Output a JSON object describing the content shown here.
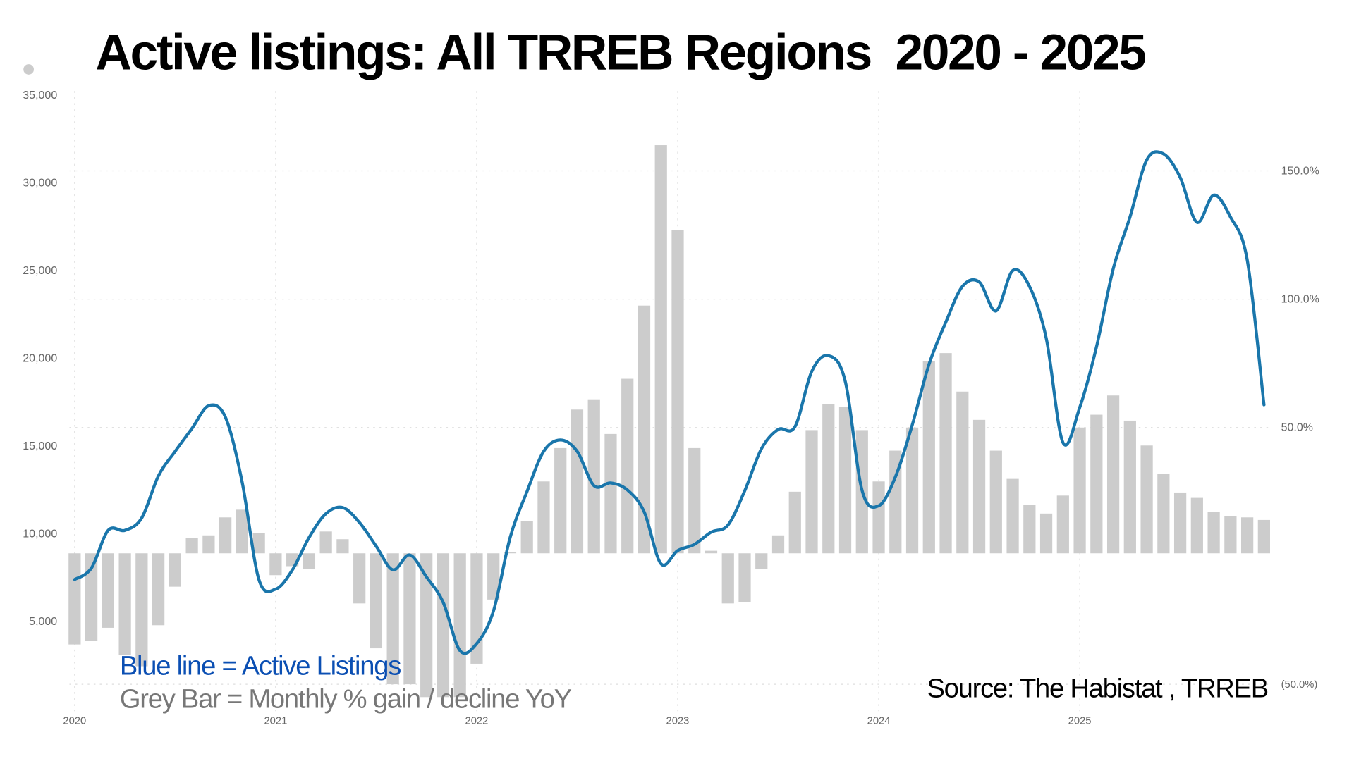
{
  "chart_data": {
    "type": "bar+line",
    "title": "Active listings: All TRREB Regions  2020 - 2025",
    "x_start": "2020-01",
    "x_tick_labels": [
      "2020",
      "2021",
      "2022",
      "2023",
      "2024",
      "2025"
    ],
    "left_axis": {
      "label": "Active Listings",
      "ticks": [
        "5,000",
        "10,000",
        "15,000",
        "20,000",
        "25,000",
        "30,000",
        "35,000"
      ],
      "tick_values": [
        5000,
        10000,
        15000,
        20000,
        25000,
        30000,
        35000
      ],
      "range": [
        0,
        35000
      ]
    },
    "right_axis": {
      "label": "Monthly % gain / decline YoY",
      "ticks": [
        "150.0%",
        "100.0%",
        "50.0%",
        "(50.0%)"
      ],
      "tick_values": [
        150,
        100,
        50,
        -50
      ],
      "range": [
        -60,
        178
      ]
    },
    "grid": true,
    "series": [
      {
        "name": "Active Listings",
        "type": "line",
        "axis": "left",
        "color": "#1a76ab",
        "values": [
          7400,
          8050,
          10200,
          10200,
          10900,
          13300,
          14700,
          16000,
          17300,
          16650,
          12950,
          7400,
          6850,
          7950,
          9800,
          11150,
          11500,
          10650,
          9300,
          7950,
          8800,
          7550,
          6100,
          3350,
          3750,
          5600,
          9800,
          12400,
          14700,
          15350,
          14700,
          12750,
          12900,
          12500,
          11250,
          8300,
          9050,
          9400,
          10100,
          10500,
          12450,
          14850,
          15950,
          16100,
          19250,
          20150,
          18700,
          12500,
          11600,
          13250,
          16200,
          19650,
          22050,
          24100,
          24350,
          22700,
          25000,
          24100,
          21150,
          15200,
          17200,
          20650,
          25100,
          28050,
          31300,
          31650,
          30300,
          27750,
          29300,
          28050,
          25600,
          17350
        ]
      },
      {
        "name": "Monthly % gain / decline YoY",
        "type": "bar",
        "axis": "right",
        "color": "#cccccc",
        "values": [
          -34.5,
          -33,
          -28,
          -38.5,
          -43,
          -27,
          -12,
          7,
          8,
          15,
          18,
          9,
          -7.5,
          -4,
          -5,
          9.5,
          6.5,
          -18.5,
          -36,
          -50,
          -50,
          -55,
          -55,
          -55,
          -42,
          -17,
          1.5,
          13.5,
          29,
          42,
          57,
          61,
          47.5,
          69,
          97.5,
          160,
          127,
          42,
          2,
          -18.5,
          -18,
          -5,
          8,
          25,
          49,
          59,
          58,
          49,
          29,
          41,
          50,
          76,
          79,
          64,
          53,
          41,
          30,
          20,
          16.5,
          23.5,
          50,
          55,
          62.5,
          52.7,
          43,
          32,
          24.7,
          22.6,
          17,
          15.5,
          15,
          14
        ]
      }
    ],
    "legend": {
      "line_text": "Blue line = Active Listings",
      "bar_text": "Grey Bar = Monthly % gain / decline YoY",
      "line_color": "#0b4fb3",
      "bar_color": "#777777"
    },
    "source": "Source: The Habistat , TRREB"
  }
}
